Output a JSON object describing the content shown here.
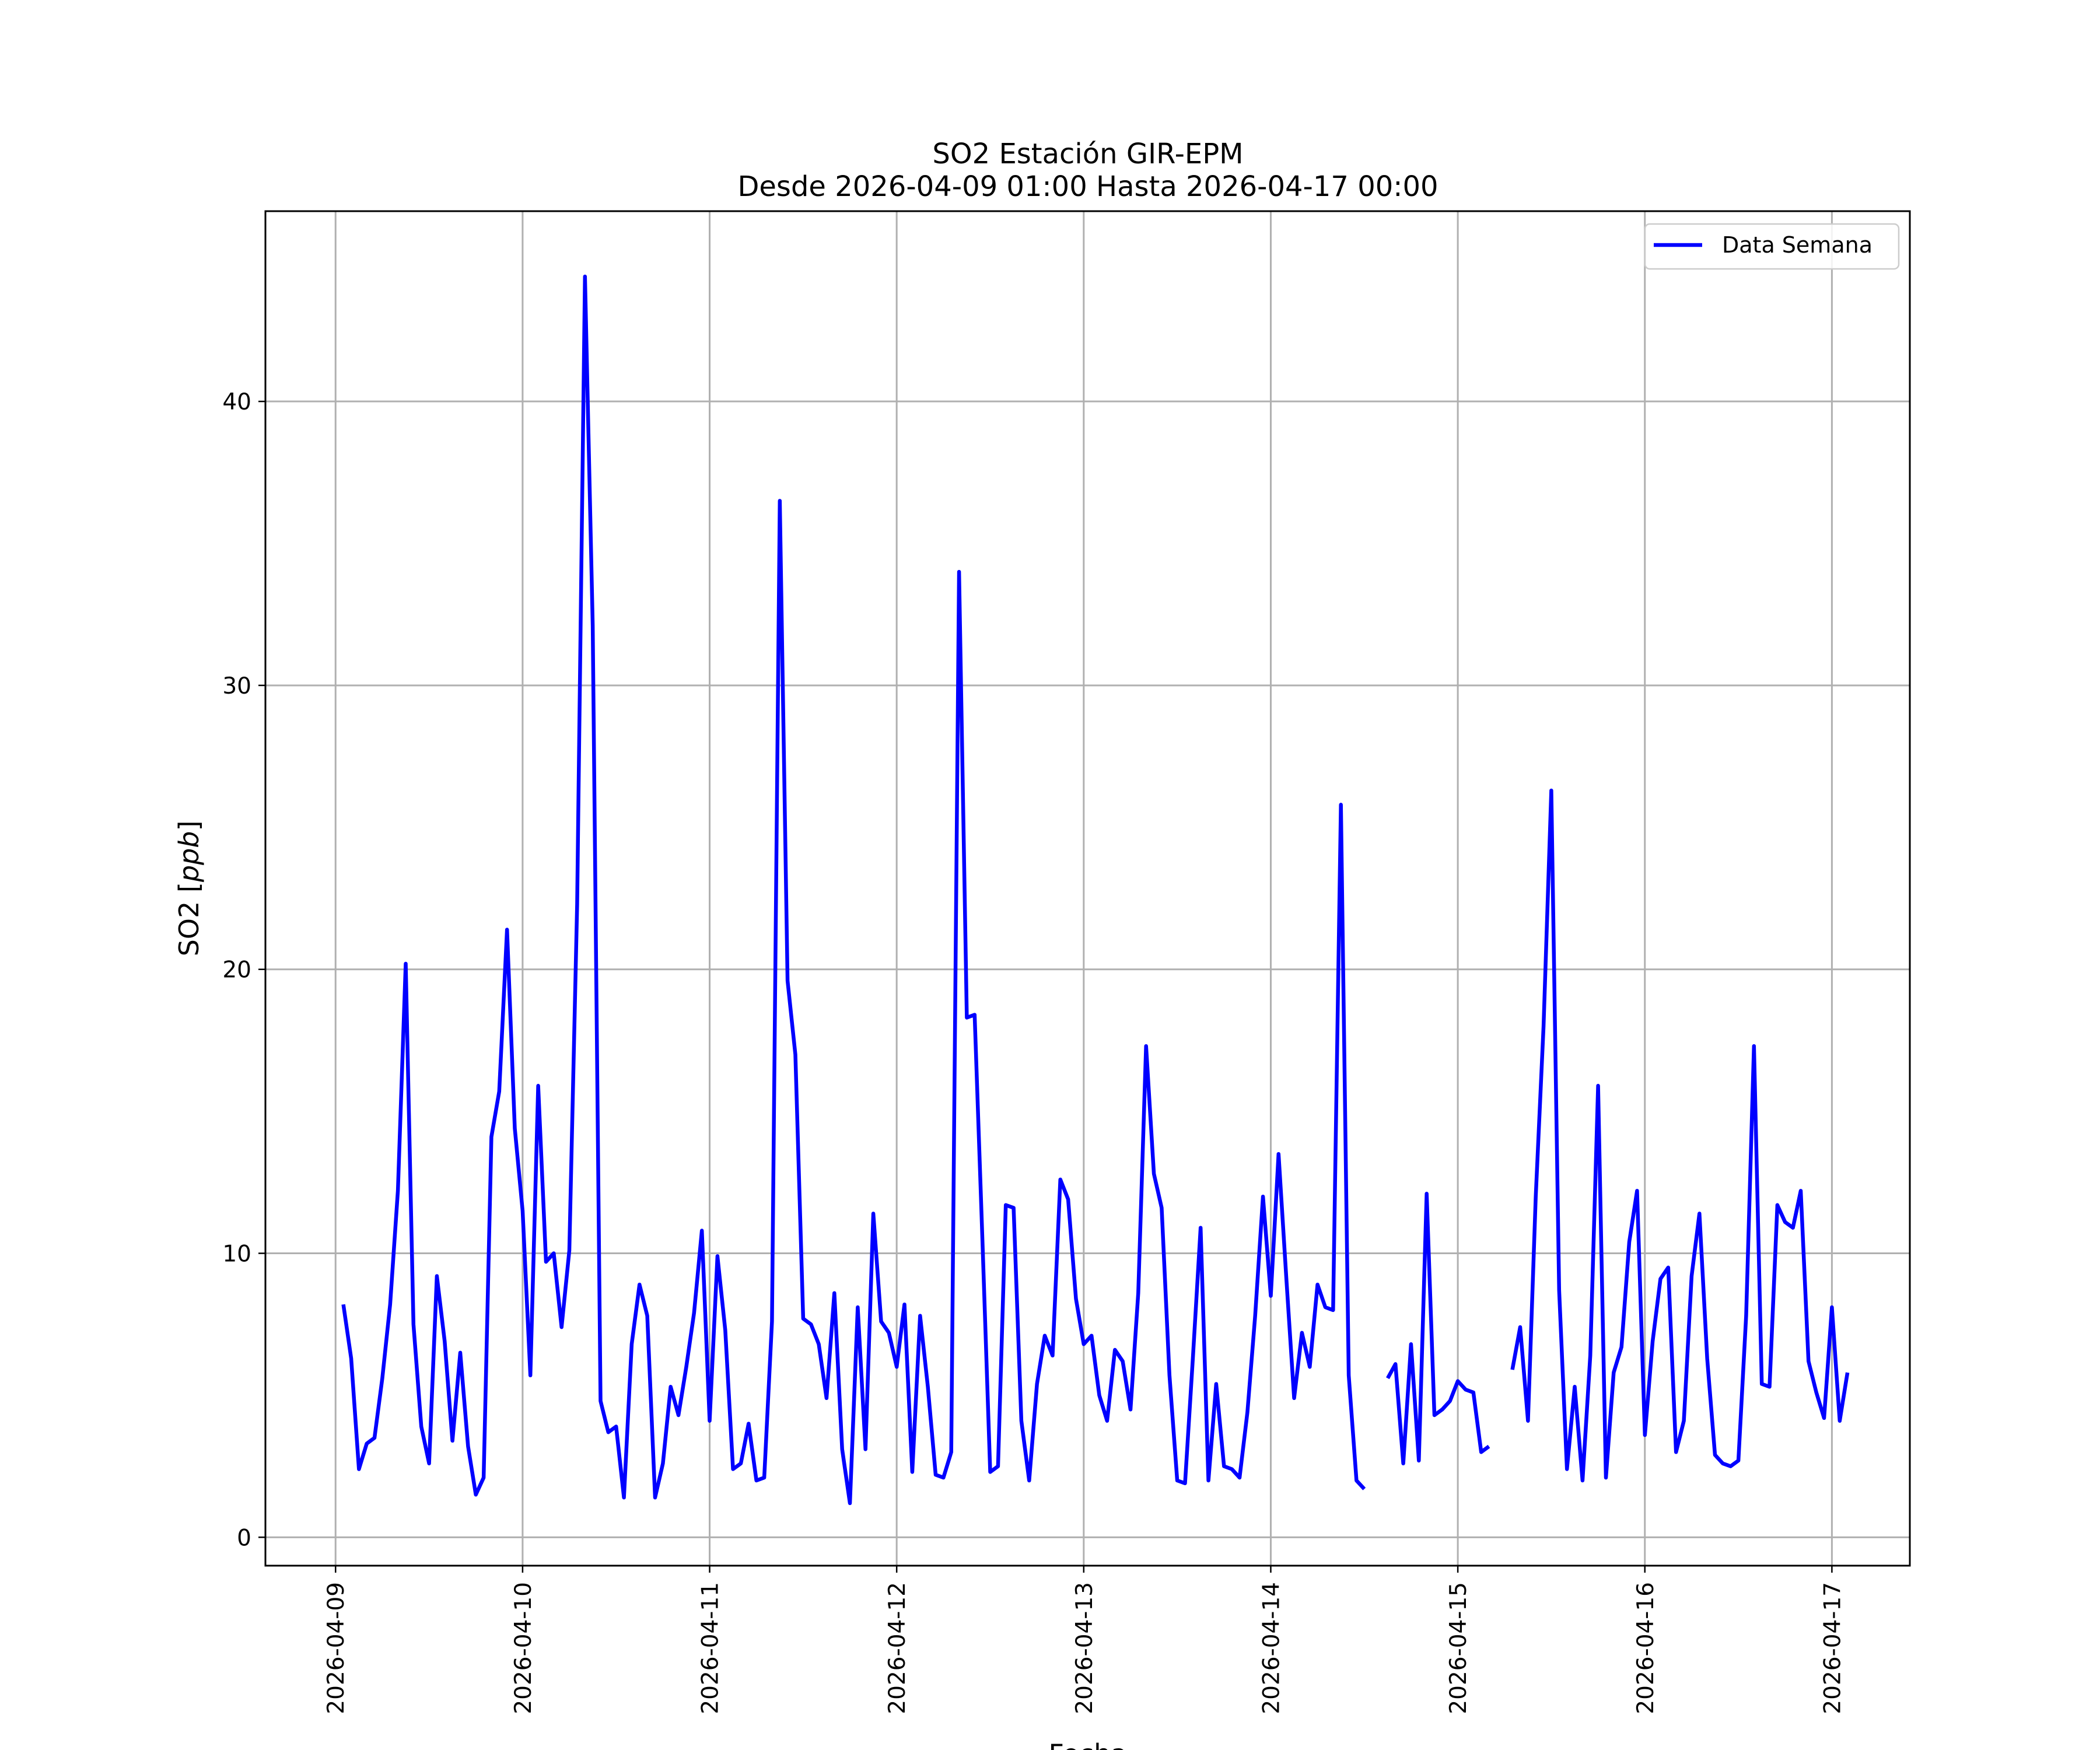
{
  "chart_data": {
    "type": "line",
    "title": "SO2 Estación GIR-EPM",
    "subtitle": "Desde 2026-04-09 01:00 Hasta 2026-04-17 00:00",
    "xlabel": "Fecha",
    "ylabel": "SO2 [ppb]",
    "ylabel_prefix": "SO2 [",
    "ylabel_unit": "ppb",
    "ylabel_suffix": "]",
    "xlim": [
      "2026-04-08 15:00",
      "2026-04-17 10:00"
    ],
    "ylim": [
      -1,
      46.7
    ],
    "yticks": [
      0,
      10,
      20,
      30,
      40
    ],
    "xticks": [
      "2026-04-09",
      "2026-04-10",
      "2026-04-11",
      "2026-04-12",
      "2026-04-13",
      "2026-04-14",
      "2026-04-15",
      "2026-04-16",
      "2026-04-17"
    ],
    "grid": true,
    "legend_position": "top-right",
    "color": "#0000ff",
    "series": [
      {
        "name": "Data Semana",
        "color": "#0000ff",
        "x_start": "2026-04-09 01:00",
        "step_hours": 1,
        "values": [
          8.2,
          6.3,
          2.4,
          3.3,
          3.5,
          5.6,
          8.2,
          12.2,
          20.2,
          7.5,
          3.9,
          2.6,
          9.2,
          6.9,
          3.4,
          6.5,
          3.2,
          1.5,
          2.1,
          14.1,
          15.7,
          21.4,
          14.4,
          11.5,
          5.7,
          15.9,
          9.7,
          10.0,
          7.4,
          10.1,
          22.3,
          44.4,
          32.1,
          4.8,
          3.7,
          3.9,
          1.4,
          6.8,
          8.9,
          7.8,
          1.4,
          2.6,
          5.3,
          4.3,
          6.0,
          7.9,
          10.8,
          4.1,
          9.9,
          7.3,
          2.4,
          2.6,
          4.0,
          2.0,
          2.1,
          7.6,
          36.5,
          19.6,
          17.0,
          7.7,
          7.5,
          6.8,
          4.9,
          8.6,
          3.1,
          1.2,
          8.1,
          3.1,
          11.4,
          7.6,
          7.2,
          6.0,
          8.2,
          2.3,
          7.8,
          5.3,
          2.2,
          2.1,
          3.0,
          34.0,
          18.3,
          18.4,
          10.5,
          2.3,
          2.5,
          11.7,
          11.6,
          4.1,
          2.0,
          5.4,
          7.1,
          6.4,
          12.6,
          11.9,
          8.4,
          6.8,
          7.1,
          5.0,
          4.1,
          6.6,
          6.2,
          4.5,
          8.6,
          17.3,
          12.8,
          11.6,
          5.7,
          2.0,
          1.9,
          6.3,
          10.9,
          2.0,
          5.4,
          2.5,
          2.4,
          2.1,
          4.4,
          7.8,
          12.0,
          8.5,
          13.5,
          9.1,
          4.9,
          7.2,
          6.0,
          8.9,
          8.1,
          8.0,
          25.8,
          5.7,
          2.0,
          1.7,
          null,
          null,
          5.6,
          6.1,
          2.6,
          6.8,
          2.7,
          12.1,
          4.3,
          4.5,
          4.8,
          5.5,
          5.2,
          5.1,
          3.0,
          3.2,
          null,
          null,
          5.9,
          7.4,
          4.1,
          12.0,
          18.0,
          26.3,
          8.7,
          2.4,
          5.3,
          2.0,
          6.4,
          15.9,
          2.1,
          5.8,
          6.7,
          10.4,
          12.2,
          3.6,
          6.9,
          9.1,
          9.5,
          3.0,
          4.1,
          9.2,
          11.4,
          6.3,
          2.9,
          2.6,
          2.5,
          2.7,
          7.8,
          17.3,
          5.4,
          5.3,
          11.7,
          11.1,
          10.9,
          12.2,
          6.2,
          5.1,
          4.2,
          8.1,
          4.1,
          5.8
        ]
      }
    ]
  }
}
